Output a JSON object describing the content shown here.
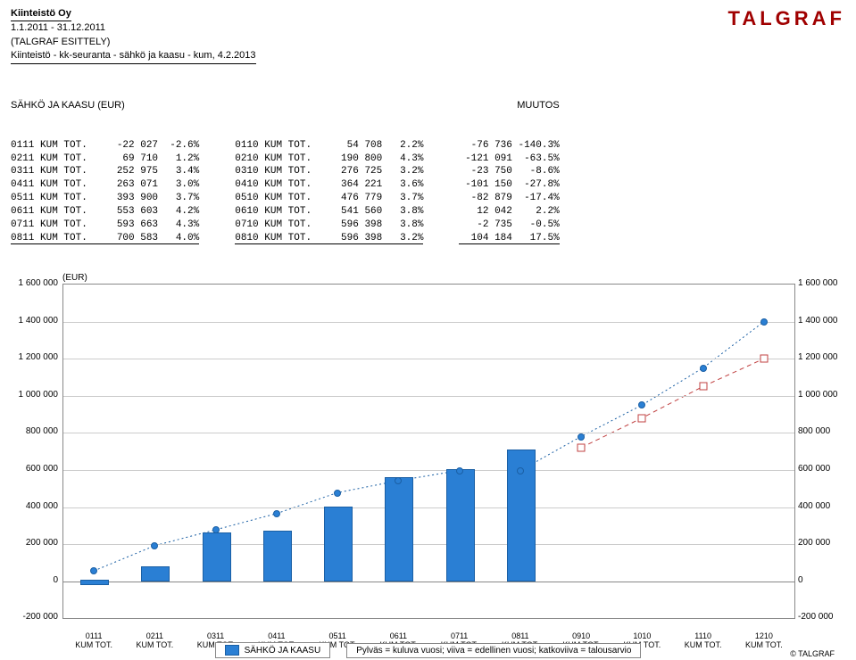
{
  "header": {
    "company": "Kiinteistö Oy",
    "period": "1.1.2011 - 31.12.2011",
    "note": "(TALGRAF ESITTELY)",
    "subtitle": "Kiinteistö - kk-seuranta - sähkö ja kaasu - kum, 4.2.2013",
    "logo": "TALGRAF"
  },
  "tables": {
    "left": {
      "title": "SÄHKÖ JA KAASU (EUR)",
      "rows": [
        {
          "c0": "0111 KUM TOT.",
          "c1": "-22 027",
          "c2": "-2.6%"
        },
        {
          "c0": "0211 KUM TOT.",
          "c1": "69 710",
          "c2": "1.2%"
        },
        {
          "c0": "0311 KUM TOT.",
          "c1": "252 975",
          "c2": "3.4%"
        },
        {
          "c0": "0411 KUM TOT.",
          "c1": "263 071",
          "c2": "3.0%"
        },
        {
          "c0": "0511 KUM TOT.",
          "c1": "393 900",
          "c2": "3.7%"
        },
        {
          "c0": "0611 KUM TOT.",
          "c1": "553 603",
          "c2": "4.2%"
        },
        {
          "c0": "0711 KUM TOT.",
          "c1": "593 663",
          "c2": "4.3%"
        },
        {
          "c0": "0811 KUM TOT.",
          "c1": "700 583",
          "c2": "4.0%"
        }
      ]
    },
    "mid": {
      "rows": [
        {
          "c0": "0110 KUM TOT.",
          "c1": "54 708",
          "c2": "2.2%"
        },
        {
          "c0": "0210 KUM TOT.",
          "c1": "190 800",
          "c2": "4.3%"
        },
        {
          "c0": "0310 KUM TOT.",
          "c1": "276 725",
          "c2": "3.2%"
        },
        {
          "c0": "0410 KUM TOT.",
          "c1": "364 221",
          "c2": "3.6%"
        },
        {
          "c0": "0510 KUM TOT.",
          "c1": "476 779",
          "c2": "3.7%"
        },
        {
          "c0": "0610 KUM TOT.",
          "c1": "541 560",
          "c2": "3.8%"
        },
        {
          "c0": "0710 KUM TOT.",
          "c1": "596 398",
          "c2": "3.8%"
        },
        {
          "c0": "0810 KUM TOT.",
          "c1": "596 398",
          "c2": "3.2%"
        }
      ]
    },
    "right": {
      "title": "MUUTOS",
      "rows": [
        {
          "c0": "-76 736",
          "c1": "-140.3%"
        },
        {
          "c0": "-121 091",
          "c1": "-63.5%"
        },
        {
          "c0": "-23 750",
          "c1": "-8.6%"
        },
        {
          "c0": "-101 150",
          "c1": "-27.8%"
        },
        {
          "c0": "-82 879",
          "c1": "-17.4%"
        },
        {
          "c0": "12 042",
          "c1": "2.2%"
        },
        {
          "c0": "-2 735",
          "c1": "-0.5%"
        },
        {
          "c0": "104 184",
          "c1": "17.5%"
        }
      ]
    }
  },
  "chart": {
    "eur_label": "(EUR)",
    "ymin": -200000,
    "ymax": 1600000,
    "ystep": 200000,
    "yticks": [
      "1 600 000",
      "1 400 000",
      "1 200 000",
      "1 000 000",
      "800 000",
      "600 000",
      "400 000",
      "200 000",
      "0",
      "-200 000"
    ],
    "categories": [
      "0111\nKUM TOT.",
      "0211\nKUM TOT.",
      "0311\nKUM TOT.",
      "0411\nKUM TOT.",
      "0511\nKUM TOT.",
      "0611\nKUM TOT.",
      "0711\nKUM TOT.",
      "0811\nKUM TOT.",
      "0910\nKUM TOT.",
      "1010\nKUM TOT.",
      "1110\nKUM TOT.",
      "1210\nKUM TOT."
    ],
    "bars": [
      -22027,
      69710,
      252975,
      263071,
      393900,
      553603,
      593663,
      700583,
      null,
      null,
      null,
      null
    ],
    "line_dots": [
      54708,
      190800,
      276725,
      364221,
      476779,
      541560,
      596398,
      596398,
      780000,
      950000,
      1150000,
      1400000
    ],
    "line_squares": [
      null,
      null,
      null,
      null,
      null,
      null,
      null,
      null,
      720000,
      880000,
      1050000,
      1200000
    ],
    "bar_color": "#2a7fd4",
    "bar_border": "#1a5fa4",
    "dot_color": "#2a7fd4",
    "dot_border": "#1a5fa4",
    "square_border": "#c04040",
    "grid_color": "#cccccc",
    "legend_series": "SÄHKÖ JA KAASU",
    "legend_note": "Pylväs = kuluva vuosi; viiva = edellinen vuosi; katkoviiva = talousarvio",
    "copyright": "© TALGRAF"
  }
}
